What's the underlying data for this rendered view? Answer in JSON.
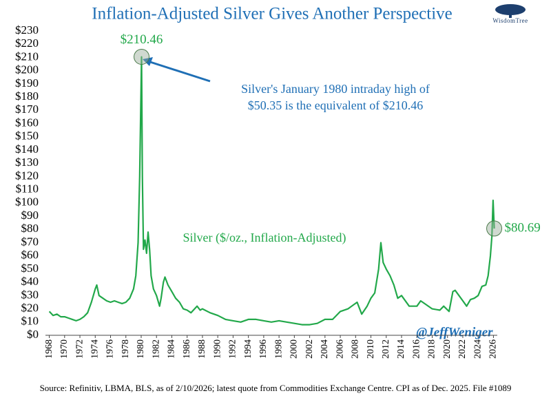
{
  "chart_data": {
    "type": "line",
    "title": "Inflation-Adjusted Silver Gives Another Perspective",
    "logo": "WisdomTree",
    "annotations": [
      "Silver's January 1980 intraday high of",
      "$50.35 is the equivalent of $210.46",
      "Silver ($/oz., Inflation-Adjusted)",
      "@JeffWeniger"
    ],
    "source": "Source: Refinitiv, LBMA, BLS, as of 2/10/2026; latest quote from Commodities Exchange Centre. CPI as of Dec. 2025. File #1089",
    "x": [
      1968,
      1968.5,
      1969,
      1969.5,
      1970,
      1970.5,
      1971,
      1971.5,
      1972,
      1972.5,
      1973,
      1973.5,
      1974,
      1974.2,
      1974.5,
      1975,
      1975.5,
      1976,
      1976.5,
      1977,
      1977.5,
      1978,
      1978.5,
      1979,
      1979.3,
      1979.6,
      1979.8,
      1980.05,
      1980.15,
      1980.3,
      1980.5,
      1980.7,
      1980.9,
      1981.1,
      1981.3,
      1981.6,
      1982,
      1982.4,
      1982.6,
      1982.9,
      1983.1,
      1983.5,
      1984,
      1984.5,
      1985,
      1985.5,
      1986,
      1986.5,
      1987.3,
      1987.7,
      1988,
      1989,
      1990,
      1991,
      1992,
      1993,
      1994,
      1995,
      1996,
      1997,
      1998,
      1999,
      2000,
      2001,
      2002,
      2003,
      2004,
      2005,
      2006,
      2007,
      2008.2,
      2008.8,
      2009.5,
      2010,
      2010.5,
      2011,
      2011.3,
      2011.6,
      2012,
      2012.5,
      2013,
      2013.5,
      2014,
      2015,
      2016,
      2016.5,
      2017,
      2018,
      2019,
      2019.5,
      2020.2,
      2020.7,
      2021,
      2021.5,
      2022,
      2022.5,
      2023,
      2023.5,
      2024,
      2024.5,
      2025,
      2025.3,
      2025.6,
      2025.8,
      2025.95,
      2026.1
    ],
    "series": [
      {
        "name": "Silver",
        "color": "#22a84a",
        "values": [
          18,
          15,
          16,
          14,
          14,
          13,
          12,
          11,
          12,
          14,
          17,
          25,
          35,
          38,
          30,
          28,
          26,
          25,
          26,
          25,
          24,
          25,
          28,
          35,
          45,
          70,
          120,
          210.46,
          120,
          65,
          72,
          62,
          78,
          65,
          45,
          35,
          30,
          22,
          28,
          40,
          44,
          38,
          33,
          28,
          25,
          20,
          19,
          17,
          22,
          19,
          20,
          17,
          15,
          12,
          11,
          10,
          12,
          12,
          11,
          10,
          11,
          10,
          9,
          8,
          8,
          9,
          12,
          12,
          18,
          20,
          25,
          16,
          22,
          28,
          32,
          50,
          70,
          55,
          50,
          45,
          38,
          28,
          30,
          22,
          22,
          26,
          24,
          20,
          19,
          22,
          18,
          33,
          34,
          30,
          26,
          22,
          27,
          28,
          30,
          37,
          38,
          45,
          60,
          75,
          102,
          80.69
        ],
        "value_labels": [
          null,
          null,
          null,
          null,
          null,
          null,
          null,
          null,
          null,
          null,
          null,
          null,
          null,
          null,
          null,
          null,
          null,
          null,
          null,
          null,
          null,
          null,
          null,
          null,
          null,
          null,
          null,
          "$210.46",
          null,
          null,
          null,
          null,
          null,
          null,
          null,
          null,
          null,
          null,
          null,
          null,
          null,
          null,
          null,
          null,
          null,
          null,
          null,
          null,
          null,
          null,
          null,
          null,
          null,
          null,
          null,
          null,
          null,
          null,
          null,
          null,
          null,
          null,
          null,
          null,
          null,
          null,
          null,
          null,
          null,
          null,
          null,
          null,
          null,
          null,
          null,
          null,
          null,
          null,
          null,
          null,
          null,
          null,
          null,
          null,
          null,
          null,
          null,
          null,
          null,
          null,
          null,
          null,
          null,
          null,
          null,
          null,
          null,
          null,
          null,
          null,
          null,
          null,
          null,
          null,
          null,
          "$80.69"
        ]
      }
    ],
    "xlim": [
      1967.5,
      2026.5
    ],
    "ylim": [
      0,
      230
    ],
    "xticks": [
      1968,
      1970,
      1972,
      1974,
      1976,
      1978,
      1980,
      1982,
      1984,
      1986,
      1988,
      1990,
      1992,
      1994,
      1996,
      1998,
      2000,
      2002,
      2004,
      2006,
      2008,
      2010,
      2012,
      2014,
      2016,
      2018,
      2020,
      2022,
      2024,
      2026
    ],
    "yticks": [
      {
        "value": 0,
        "label": "$0"
      },
      {
        "value": 10,
        "label": "$10"
      },
      {
        "value": 20,
        "label": "$20"
      },
      {
        "value": 30,
        "label": "$30"
      },
      {
        "value": 40,
        "label": "$40"
      },
      {
        "value": 50,
        "label": "$50"
      },
      {
        "value": 60,
        "label": "$60"
      },
      {
        "value": 70,
        "label": "$70"
      },
      {
        "value": 80,
        "label": "$80"
      },
      {
        "value": 90,
        "label": "$90"
      },
      {
        "value": 100,
        "label": "$100"
      },
      {
        "value": 110,
        "label": "$110"
      },
      {
        "value": 120,
        "label": "$120"
      },
      {
        "value": 130,
        "label": "$130"
      },
      {
        "value": 140,
        "label": "$140"
      },
      {
        "value": 150,
        "label": "$150"
      },
      {
        "value": 160,
        "label": "$160"
      },
      {
        "value": 170,
        "label": "$170"
      },
      {
        "value": 180,
        "label": "$180"
      },
      {
        "value": 190,
        "label": "$190"
      },
      {
        "value": 200,
        "label": "$200"
      },
      {
        "value": 210,
        "label": "$210"
      },
      {
        "value": 220,
        "label": "$220"
      },
      {
        "value": 230,
        "label": "$230"
      }
    ],
    "grid": false
  }
}
